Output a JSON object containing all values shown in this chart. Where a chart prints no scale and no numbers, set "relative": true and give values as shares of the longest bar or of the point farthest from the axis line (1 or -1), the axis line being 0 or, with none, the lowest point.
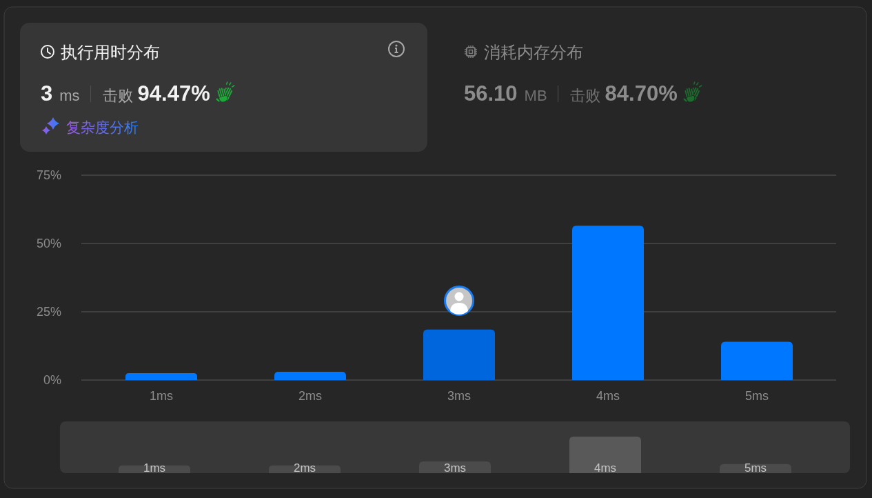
{
  "chart_data": [
    {
      "type": "other",
      "title": "执行用时分布",
      "annotations": [
        "3",
        "ms",
        "击败",
        "94.47%",
        "复杂度分析"
      ]
    },
    {
      "type": "other",
      "title": "消耗内存分布",
      "annotations": [
        "56.10",
        "MB",
        "击败",
        "84.70%"
      ]
    },
    {
      "type": "bar",
      "categories": [
        "1ms",
        "2ms",
        "3ms",
        "4ms",
        "5ms"
      ],
      "values": [
        2.5,
        3,
        18.5,
        56.5,
        14
      ],
      "colors": [
        "#0077ff",
        "#0077ff",
        "#0066dd",
        "#0077ff",
        "#0077ff"
      ],
      "ylim": [
        0,
        75
      ],
      "yticks": [
        {
          "value": 0,
          "label": "0%"
        },
        {
          "value": 25,
          "label": "25%"
        },
        {
          "value": 50,
          "label": "50%"
        },
        {
          "value": 75,
          "label": "75%"
        }
      ],
      "grid": "y"
    },
    {
      "type": "bar",
      "relative": true,
      "categories": [
        "1ms",
        "2ms",
        "3ms",
        "4ms",
        "5ms"
      ],
      "values": [
        0.21,
        0.21,
        0.32,
        1,
        0.25
      ],
      "colors": [
        "#4b4b4b",
        "#4b4b4b",
        "#4b4b4b",
        "#595959",
        "#4b4b4b"
      ]
    }
  ]
}
